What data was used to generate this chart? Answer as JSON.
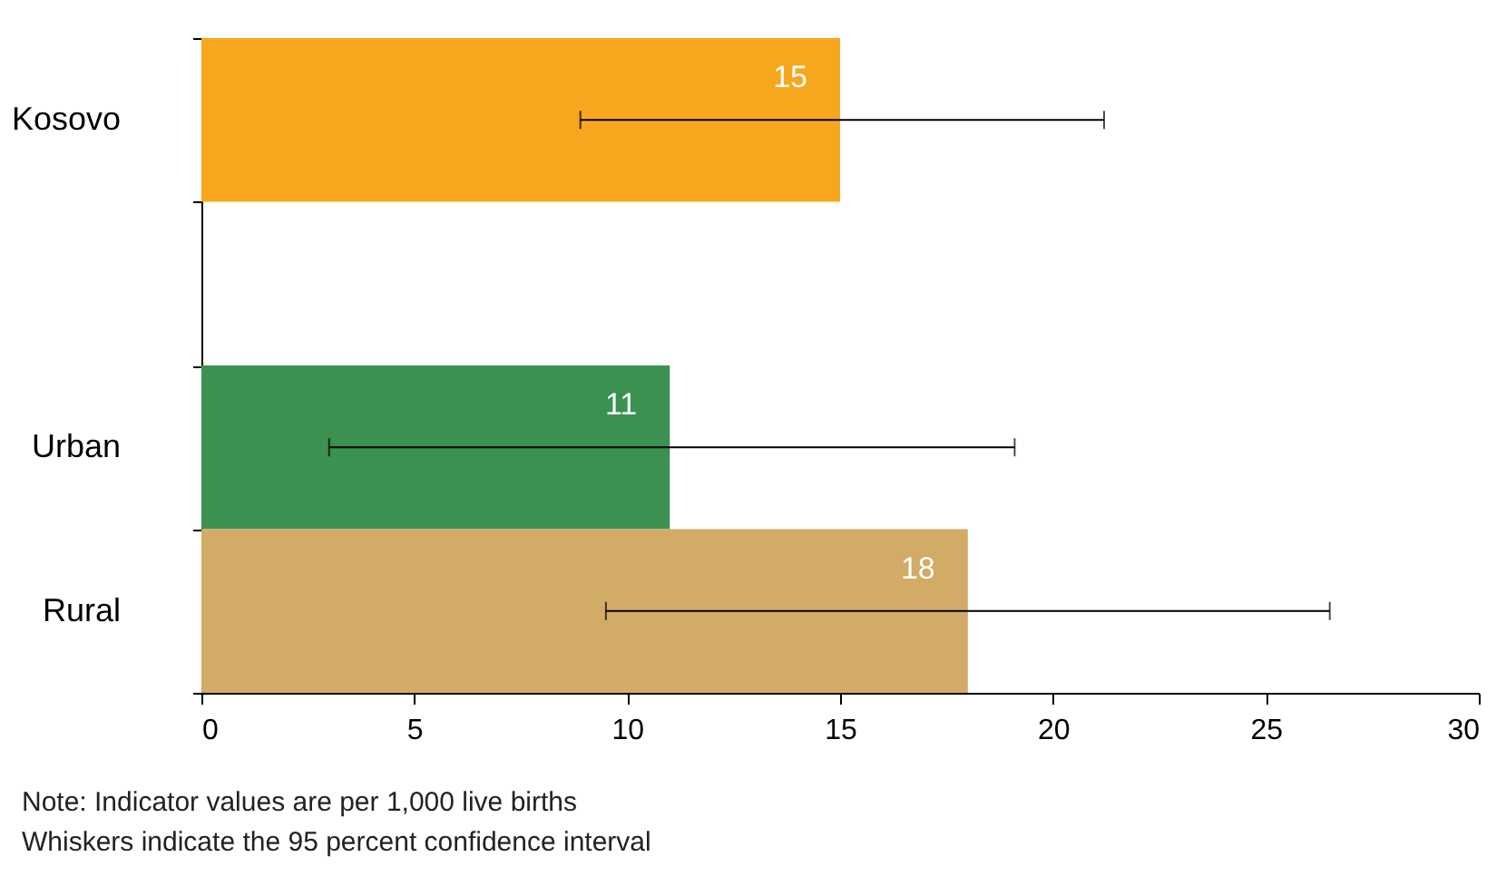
{
  "chart_data": {
    "type": "bar",
    "orientation": "horizontal",
    "categories": [
      "Kosovo",
      null,
      "Urban",
      "Rural"
    ],
    "values": [
      15,
      null,
      11,
      18
    ],
    "colors": [
      "#f9a61f",
      "#ffffff",
      "#3a9150",
      "#d2ab66"
    ],
    "errors": [
      [
        8.9,
        21.2
      ],
      null,
      [
        3.0,
        19.1
      ],
      [
        9.5,
        26.5
      ]
    ],
    "xlim": [
      0,
      30
    ],
    "xticks": [
      0,
      5,
      10,
      15,
      20,
      25,
      30
    ],
    "data_labels": true,
    "annotations": [
      "Note: Indicator values are per 1,000 live births",
      "Whiskers indicate the 95 percent confidence interval"
    ]
  }
}
